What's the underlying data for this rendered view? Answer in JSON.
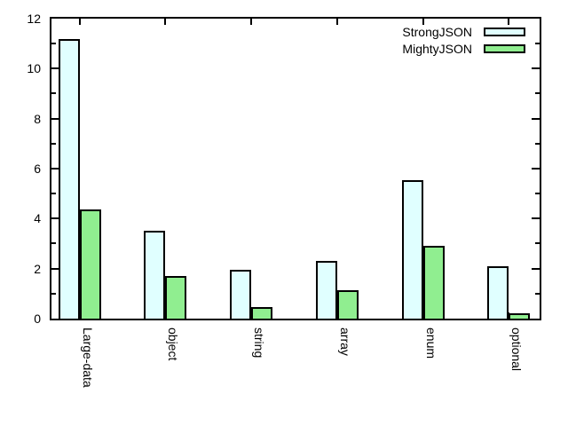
{
  "chart_data": {
    "type": "bar",
    "title": "",
    "categories": [
      "Large-data",
      "object",
      "string",
      "array",
      "enum",
      "optional"
    ],
    "series": [
      {
        "name": "StrongJSON",
        "color": "#E0FFFF",
        "values": [
          11.17,
          3.5,
          1.95,
          2.3,
          5.55,
          2.1
        ]
      },
      {
        "name": "MightyJSON",
        "color": "#90EE90",
        "values": [
          4.35,
          1.72,
          0.47,
          1.13,
          2.9,
          0.2
        ]
      }
    ],
    "xlabel": "",
    "ylabel": "",
    "ylim": [
      0,
      12
    ],
    "yticks_major": [
      0,
      2,
      4,
      6,
      8,
      10,
      12
    ],
    "yticks_minor": [
      1,
      3,
      5,
      7,
      9,
      11
    ],
    "grid": false,
    "legend_position": "top-right",
    "bar_outline_color": "#000000",
    "frame_color": "#000000",
    "background_color": "#FFFFFF",
    "xtick_label_rotation_deg": 90
  }
}
